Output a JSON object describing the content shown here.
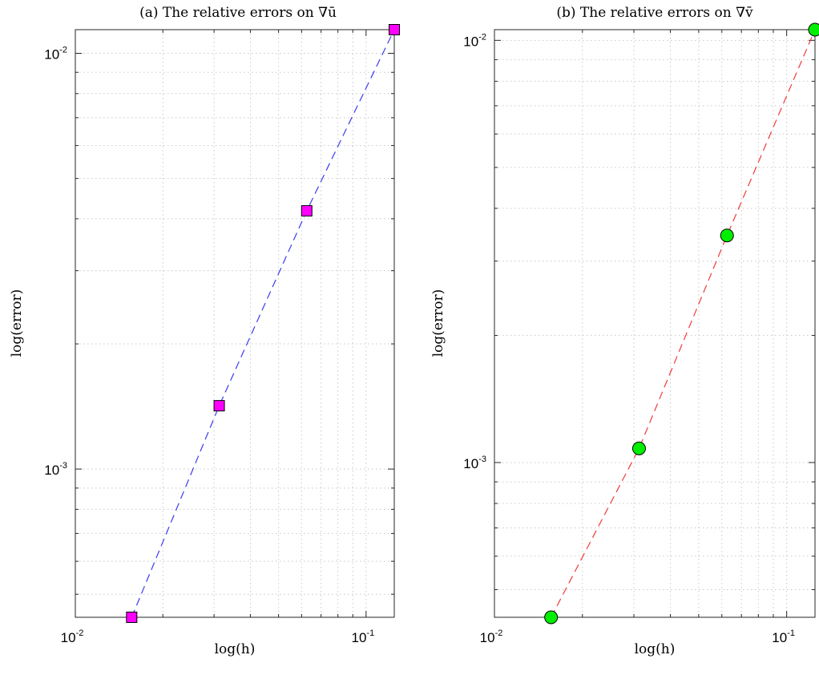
{
  "chart_data": [
    {
      "type": "line",
      "title": "(a) The relative errors on ∇ū",
      "xlabel": "log(h)",
      "ylabel": "log(error)",
      "xscale": "log",
      "yscale": "log",
      "xlim": [
        0.01,
        0.125
      ],
      "ylim": [
        0.00044,
        0.0114
      ],
      "grid": true,
      "x_ticks": [
        {
          "base": "10",
          "exp": "-2",
          "value": 0.01
        },
        {
          "base": "10",
          "exp": "-1",
          "value": 0.1
        }
      ],
      "y_ticks": [
        {
          "base": "10",
          "exp": "-3",
          "value": 0.001
        },
        {
          "base": "10",
          "exp": "-2",
          "value": 0.01
        }
      ],
      "series": [
        {
          "x": [
            0.015625,
            0.03125,
            0.0625,
            0.125
          ],
          "y": [
            0.00044,
            0.00142,
            0.00418,
            0.0114
          ],
          "line_color": "#3a3af0",
          "line_style": "dashed",
          "marker": "square",
          "marker_color": "#ff00ff"
        }
      ]
    },
    {
      "type": "line",
      "title": "(b) The relative errors on ∇v̄",
      "xlabel": "log(h)",
      "ylabel": "log(error)",
      "xscale": "log",
      "yscale": "log",
      "xlim": [
        0.01,
        0.125
      ],
      "ylim": [
        0.00043,
        0.0106
      ],
      "grid": true,
      "x_ticks": [
        {
          "base": "10",
          "exp": "-2",
          "value": 0.01
        },
        {
          "base": "10",
          "exp": "-1",
          "value": 0.1
        }
      ],
      "y_ticks": [
        {
          "base": "10",
          "exp": "-3",
          "value": 0.001
        },
        {
          "base": "10",
          "exp": "-2",
          "value": 0.01
        }
      ],
      "series": [
        {
          "x": [
            0.015625,
            0.03125,
            0.0625,
            0.125
          ],
          "y": [
            0.00043,
            0.00108,
            0.00345,
            0.0106
          ],
          "line_color": "#f03a3a",
          "line_style": "dashed",
          "marker": "circle",
          "marker_color": "#00ee00"
        }
      ]
    }
  ]
}
